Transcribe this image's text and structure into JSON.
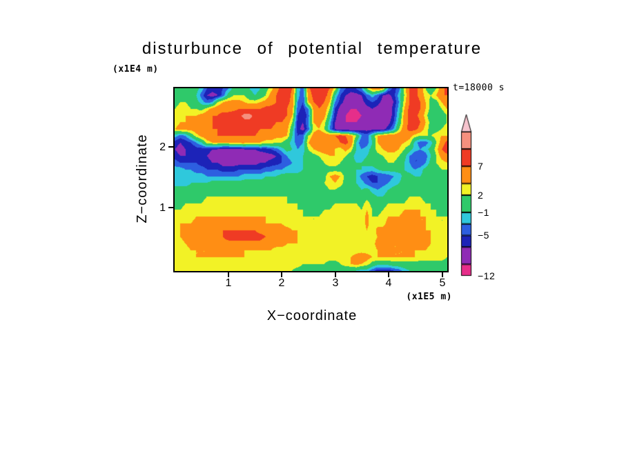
{
  "title": "disturbunce of potential temperature",
  "annotations": {
    "time": "t=18000 s"
  },
  "axes": {
    "x": {
      "label": "X−coordinate",
      "unit": "(x1E5 m)",
      "ticks": [
        "1",
        "2",
        "3",
        "4",
        "5"
      ]
    },
    "y": {
      "label": "Z−coordinate",
      "unit": "(x1E4 m)",
      "ticks": [
        "2",
        "1"
      ]
    }
  },
  "colorbar": {
    "labels": [
      "7",
      "2",
      "−1",
      "−5",
      "−12"
    ]
  },
  "chart_data": {
    "type": "heatmap",
    "title": "disturbunce of potential temperature",
    "xlabel": "X-coordinate",
    "ylabel": "Z-coordinate",
    "x_range": [
      0,
      5.1
    ],
    "y_range": [
      0,
      3.05
    ],
    "x_unit": "x1E5 m",
    "y_unit": "x1E4 m",
    "time": "t=18000 s",
    "grid": false,
    "legend_position": "right-colorbar",
    "levels": [
      -12,
      -10,
      -7,
      -5,
      -3,
      -1,
      2,
      4,
      7,
      10,
      13
    ],
    "colors": [
      "#E62E8A",
      "#E62E8A",
      "#8F2BB5",
      "#1C23B8",
      "#2D5FE0",
      "#2FC8DC",
      "#2FC96A",
      "#F2F226",
      "#FF8E14",
      "#EF3B24",
      "#F5907E",
      "#F6C4CE"
    ],
    "colorbar_labeled_levels": [
      7,
      2,
      -1,
      -5,
      -12
    ],
    "rows_top_to_bottom": true,
    "values": [
      [
        0,
        0,
        0,
        0,
        0,
        -2,
        -5,
        -6,
        -6,
        -5,
        -3,
        0,
        1,
        1,
        -1,
        -2,
        -1,
        1,
        3,
        6,
        8,
        9,
        7,
        -2,
        -4,
        6,
        9,
        9,
        8,
        7,
        3,
        -3,
        -5,
        -6,
        -5,
        -3,
        2,
        5,
        6,
        4,
        -3,
        -6,
        -4,
        3,
        7,
        8,
        6,
        2,
        0,
        2,
        6,
        8
      ],
      [
        1,
        1,
        1,
        0,
        -1,
        -4,
        -7,
        -8,
        -7,
        -4,
        0,
        2,
        2,
        2,
        0,
        -1,
        0,
        2,
        5,
        7,
        9,
        9,
        6,
        -2,
        -5,
        5,
        8,
        9,
        8,
        6,
        -1,
        -5,
        -7,
        -8,
        -8,
        -7,
        -4,
        -2,
        -4,
        -7,
        -8,
        -6,
        -2,
        2,
        7,
        8,
        6,
        3,
        2,
        4,
        7,
        7
      ],
      [
        1,
        2,
        2,
        1,
        0,
        -2,
        -4,
        -3,
        2,
        4,
        5,
        5,
        5,
        4,
        3,
        3,
        4,
        5,
        6,
        7,
        8,
        8,
        6,
        -3,
        -5,
        4,
        7,
        8,
        7,
        4,
        -3,
        -6,
        -8,
        -9,
        -9,
        -8,
        -6,
        -5,
        -6,
        -8,
        -9,
        -7,
        -3,
        3,
        7,
        9,
        7,
        4,
        1,
        1,
        4,
        6
      ],
      [
        2,
        3,
        3,
        2,
        2,
        1,
        3,
        5,
        6,
        6,
        6,
        6,
        7,
        7,
        7,
        7,
        7,
        8,
        8,
        8,
        8,
        7,
        5,
        -4,
        -6,
        -3,
        5,
        7,
        6,
        2,
        -5,
        -8,
        -9,
        -10,
        -10,
        -9,
        -8,
        -7,
        -8,
        -9,
        -9,
        -6,
        -2,
        4,
        8,
        9,
        7,
        4,
        1,
        0,
        2,
        4
      ],
      [
        2,
        3,
        4,
        4,
        4,
        5,
        6,
        7,
        7,
        8,
        8,
        9,
        9,
        11,
        11,
        9,
        9,
        9,
        8,
        8,
        8,
        7,
        4,
        -5,
        -7,
        -4,
        4,
        6,
        5,
        0,
        -6,
        -9,
        -10,
        -11,
        -11,
        -10,
        -9,
        -9,
        -10,
        -10,
        -9,
        -6,
        -1,
        5,
        8,
        8,
        6,
        3,
        0,
        -1,
        0,
        2
      ],
      [
        3,
        4,
        4,
        5,
        5,
        6,
        6,
        7,
        8,
        8,
        9,
        9,
        9,
        9,
        9,
        9,
        8,
        8,
        8,
        7,
        7,
        6,
        2,
        -6,
        -7,
        -3,
        4,
        5,
        3,
        -2,
        -7,
        -9,
        -10,
        -10,
        -10,
        -9,
        -9,
        -9,
        -9,
        -9,
        -8,
        -5,
        0,
        5,
        8,
        9,
        7,
        4,
        1,
        0,
        1,
        2
      ],
      [
        4,
        5,
        5,
        5,
        6,
        6,
        7,
        7,
        7,
        8,
        8,
        8,
        8,
        8,
        8,
        8,
        7,
        7,
        7,
        6,
        6,
        5,
        0,
        -6,
        -8,
        -4,
        3,
        4,
        2,
        -3,
        -7,
        -9,
        -9,
        -9,
        -9,
        -8,
        -8,
        -8,
        -8,
        -8,
        -6,
        -3,
        2,
        6,
        8,
        8,
        6,
        3,
        1,
        1,
        2,
        3
      ],
      [
        -2,
        -4,
        -3,
        0,
        3,
        5,
        6,
        6,
        7,
        7,
        7,
        7,
        7,
        7,
        7,
        7,
        6,
        6,
        6,
        5,
        5,
        4,
        -1,
        -5,
        -4,
        2,
        5,
        6,
        6,
        6,
        7,
        8,
        7,
        5,
        2,
        -3,
        -4,
        0,
        4,
        5,
        6,
        6,
        6,
        6,
        5,
        3,
        2,
        2,
        2,
        3,
        4,
        4
      ],
      [
        -6,
        -7,
        -6,
        -5,
        -3,
        -1,
        3,
        4,
        4,
        4,
        4,
        5,
        5,
        5,
        4,
        4,
        4,
        3,
        3,
        2,
        2,
        0,
        -2,
        -4,
        -3,
        4,
        6,
        7,
        7,
        6,
        5,
        7,
        8,
        6,
        -1,
        -5,
        -4,
        -1,
        4,
        5,
        6,
        6,
        5,
        4,
        3,
        -2,
        -4,
        -4,
        -2,
        2,
        5,
        8
      ],
      [
        -7,
        -8,
        -7,
        -7,
        -6,
        -6,
        -6,
        -7,
        -7,
        -8,
        -8,
        -8,
        -8,
        -7,
        -7,
        -7,
        -6,
        -6,
        -5,
        -4,
        -2,
        0,
        -1,
        -3,
        -2,
        2,
        4,
        5,
        6,
        5,
        4,
        3,
        5,
        3,
        -1,
        -3,
        -2,
        0,
        3,
        4,
        5,
        5,
        4,
        2,
        0,
        -2,
        -3,
        -2,
        0,
        3,
        7,
        9
      ],
      [
        -6,
        -7,
        -7,
        -6,
        -6,
        -6,
        -7,
        -8,
        -8,
        -9,
        -10,
        -10,
        -9,
        -9,
        -10,
        -9,
        -9,
        -8,
        -8,
        -7,
        -5,
        -3,
        -2,
        -2,
        -1,
        0,
        1,
        2,
        3,
        4,
        4,
        3,
        2,
        0,
        -2,
        -2,
        -1,
        0,
        1,
        2,
        3,
        3,
        2,
        0,
        -3,
        -5,
        -5,
        -4,
        -1,
        2,
        5,
        6
      ],
      [
        -4,
        -5,
        -5,
        -5,
        -5,
        -6,
        -6,
        -7,
        -7,
        -8,
        -8,
        -8,
        -8,
        -8,
        -8,
        -8,
        -7,
        -7,
        -6,
        -6,
        -5,
        -4,
        -3,
        -2,
        -1,
        0,
        0,
        1,
        2,
        3,
        3,
        2,
        1,
        0,
        -1,
        -1,
        0,
        0,
        1,
        1,
        2,
        2,
        1,
        -1,
        -3,
        -5,
        -5,
        -3,
        0,
        2,
        3,
        4
      ],
      [
        -2,
        -2,
        -3,
        -3,
        -4,
        -4,
        -5,
        -5,
        -5,
        -6,
        -6,
        -6,
        -5,
        -5,
        -5,
        -5,
        -5,
        -4,
        -4,
        -3,
        -3,
        -2,
        -2,
        -2,
        -1,
        -1,
        0,
        0,
        1,
        1,
        1,
        1,
        0,
        0,
        -1,
        -1,
        -2,
        -2,
        -1,
        0,
        0,
        0,
        0,
        -1,
        -2,
        -3,
        -2,
        0,
        1,
        1,
        2,
        2
      ],
      [
        -1,
        -1,
        -1,
        -2,
        -2,
        -2,
        -3,
        -3,
        -3,
        -3,
        -3,
        -3,
        -3,
        -2,
        -2,
        -2,
        -2,
        -1,
        -1,
        -1,
        0,
        0,
        0,
        0,
        0,
        1,
        1,
        1,
        1,
        4,
        5,
        4,
        1,
        0,
        -1,
        -4,
        -5,
        -6,
        -5,
        -5,
        -4,
        -3,
        -2,
        0,
        0,
        -1,
        -1,
        0,
        1,
        1,
        1,
        1
      ],
      [
        -2,
        -2,
        -2,
        -1,
        -1,
        -1,
        -1,
        0,
        0,
        0,
        0,
        0,
        0,
        0,
        0,
        0,
        0,
        0,
        0,
        0,
        1,
        1,
        1,
        0,
        0,
        1,
        1,
        1,
        2,
        3,
        4,
        3,
        1,
        0,
        -1,
        -2,
        -4,
        -5,
        -5,
        -4,
        -3,
        -2,
        -1,
        0,
        0,
        0,
        0,
        0,
        1,
        1,
        1,
        1
      ],
      [
        0,
        0,
        0,
        0,
        0,
        0,
        0,
        0,
        1,
        1,
        1,
        1,
        1,
        1,
        1,
        1,
        1,
        1,
        1,
        1,
        1,
        1,
        1,
        0,
        0,
        0,
        1,
        1,
        1,
        2,
        2,
        1,
        1,
        0,
        0,
        -1,
        0,
        -2,
        -3,
        -2,
        -1,
        0,
        0,
        1,
        1,
        1,
        1,
        1,
        1,
        1,
        1,
        1
      ],
      [
        -1,
        -1,
        0,
        1,
        1,
        1,
        2,
        2,
        2,
        2,
        2,
        2,
        2,
        2,
        2,
        2,
        2,
        2,
        2,
        2,
        2,
        2,
        1,
        1,
        0,
        0,
        0,
        0,
        0,
        1,
        1,
        1,
        1,
        1,
        1,
        0,
        1,
        0,
        -1,
        -1,
        0,
        1,
        1,
        1,
        2,
        2,
        2,
        1,
        1,
        0,
        0,
        0
      ],
      [
        1,
        1,
        2,
        2,
        2,
        2,
        3,
        3,
        3,
        3,
        3,
        3,
        3,
        3,
        3,
        3,
        3,
        3,
        3,
        3,
        3,
        2,
        2,
        2,
        1,
        1,
        1,
        1,
        1,
        1,
        2,
        2,
        2,
        2,
        2,
        1,
        3,
        1,
        0,
        1,
        2,
        2,
        2,
        2,
        3,
        3,
        3,
        2,
        2,
        1,
        0,
        0
      ],
      [
        2,
        2,
        3,
        3,
        3,
        3,
        3,
        3,
        3,
        3,
        3,
        3,
        3,
        3,
        3,
        3,
        3,
        3,
        3,
        3,
        3,
        3,
        3,
        2,
        2,
        1,
        1,
        1,
        2,
        2,
        3,
        3,
        3,
        3,
        3,
        2,
        4,
        2,
        1,
        2,
        3,
        3,
        3,
        4,
        4,
        4,
        4,
        3,
        2,
        2,
        1,
        1
      ],
      [
        3,
        3,
        3,
        3,
        4,
        4,
        4,
        4,
        4,
        4,
        4,
        4,
        4,
        4,
        4,
        4,
        4,
        4,
        3,
        3,
        3,
        3,
        3,
        3,
        2,
        2,
        2,
        2,
        3,
        3,
        3,
        3,
        3,
        3,
        3,
        2,
        5,
        2,
        2,
        3,
        4,
        4,
        4,
        5,
        5,
        4,
        4,
        4,
        3,
        2,
        2,
        2
      ],
      [
        3,
        4,
        4,
        4,
        5,
        5,
        5,
        5,
        5,
        5,
        5,
        5,
        5,
        5,
        5,
        5,
        5,
        4,
        4,
        4,
        4,
        3,
        3,
        3,
        3,
        3,
        2,
        2,
        3,
        3,
        3,
        3,
        3,
        3,
        2,
        2,
        5,
        2,
        3,
        3,
        5,
        5,
        4,
        5,
        5,
        5,
        4,
        4,
        3,
        3,
        2,
        2
      ],
      [
        3,
        4,
        5,
        5,
        5,
        6,
        6,
        6,
        6,
        7,
        7,
        7,
        7,
        7,
        7,
        7,
        6,
        6,
        6,
        5,
        5,
        5,
        4,
        4,
        3,
        3,
        3,
        3,
        3,
        3,
        3,
        3,
        3,
        3,
        3,
        2,
        4,
        2,
        5,
        5,
        6,
        5,
        5,
        6,
        5,
        5,
        5,
        4,
        4,
        3,
        3,
        3
      ],
      [
        3,
        4,
        5,
        5,
        6,
        6,
        6,
        7,
        7,
        7,
        8,
        8,
        8,
        8,
        8,
        8,
        8,
        7,
        7,
        6,
        6,
        5,
        5,
        4,
        4,
        3,
        3,
        3,
        3,
        3,
        3,
        3,
        3,
        3,
        3,
        3,
        4,
        3,
        4,
        5,
        5,
        5,
        5,
        5,
        6,
        6,
        5,
        5,
        4,
        4,
        3,
        3
      ],
      [
        3,
        3,
        4,
        5,
        5,
        5,
        6,
        6,
        6,
        6,
        6,
        6,
        6,
        6,
        6,
        6,
        6,
        5,
        5,
        5,
        5,
        4,
        4,
        4,
        3,
        3,
        3,
        3,
        3,
        3,
        3,
        3,
        3,
        3,
        3,
        3,
        4,
        3,
        5,
        5,
        5,
        4,
        4,
        5,
        5,
        5,
        7,
        5,
        4,
        3,
        3,
        3
      ],
      [
        3,
        3,
        3,
        4,
        4,
        4,
        4,
        5,
        5,
        5,
        5,
        5,
        5,
        4,
        4,
        4,
        4,
        4,
        4,
        3,
        3,
        3,
        3,
        3,
        3,
        3,
        3,
        3,
        3,
        3,
        3,
        3,
        3,
        3,
        3,
        3,
        3,
        3,
        4,
        5,
        5,
        4,
        4,
        4,
        5,
        4,
        4,
        4,
        3,
        3,
        3,
        3
      ],
      [
        3,
        3,
        3,
        3,
        4,
        4,
        4,
        4,
        4,
        4,
        4,
        4,
        4,
        4,
        3,
        3,
        3,
        3,
        3,
        3,
        3,
        3,
        3,
        3,
        3,
        3,
        3,
        3,
        3,
        3,
        3,
        3,
        3,
        4,
        5,
        6,
        5,
        4,
        4,
        4,
        4,
        4,
        4,
        4,
        4,
        4,
        3,
        3,
        3,
        3,
        3,
        2
      ],
      [
        3,
        3,
        3,
        3,
        3,
        3,
        3,
        3,
        3,
        3,
        3,
        3,
        3,
        3,
        3,
        3,
        3,
        3,
        3,
        3,
        3,
        3,
        3,
        3,
        2,
        2,
        2,
        2,
        2,
        1,
        1,
        2,
        3,
        4,
        5,
        4,
        3,
        1,
        0,
        0,
        0,
        1,
        1,
        1,
        1,
        1,
        1,
        1,
        1,
        1,
        1,
        1
      ],
      [
        3,
        3,
        3,
        3,
        3,
        3,
        3,
        3,
        3,
        3,
        3,
        3,
        3,
        3,
        3,
        3,
        3,
        3,
        3,
        3,
        2,
        2,
        2,
        1,
        1,
        0,
        0,
        0,
        -1,
        -1,
        -1,
        0,
        0,
        -1,
        -1,
        -2,
        -2,
        -4,
        -6,
        -6,
        -6,
        -5,
        -4,
        -2,
        -1,
        -1,
        0,
        0,
        0,
        0,
        0,
        0
      ]
    ]
  }
}
